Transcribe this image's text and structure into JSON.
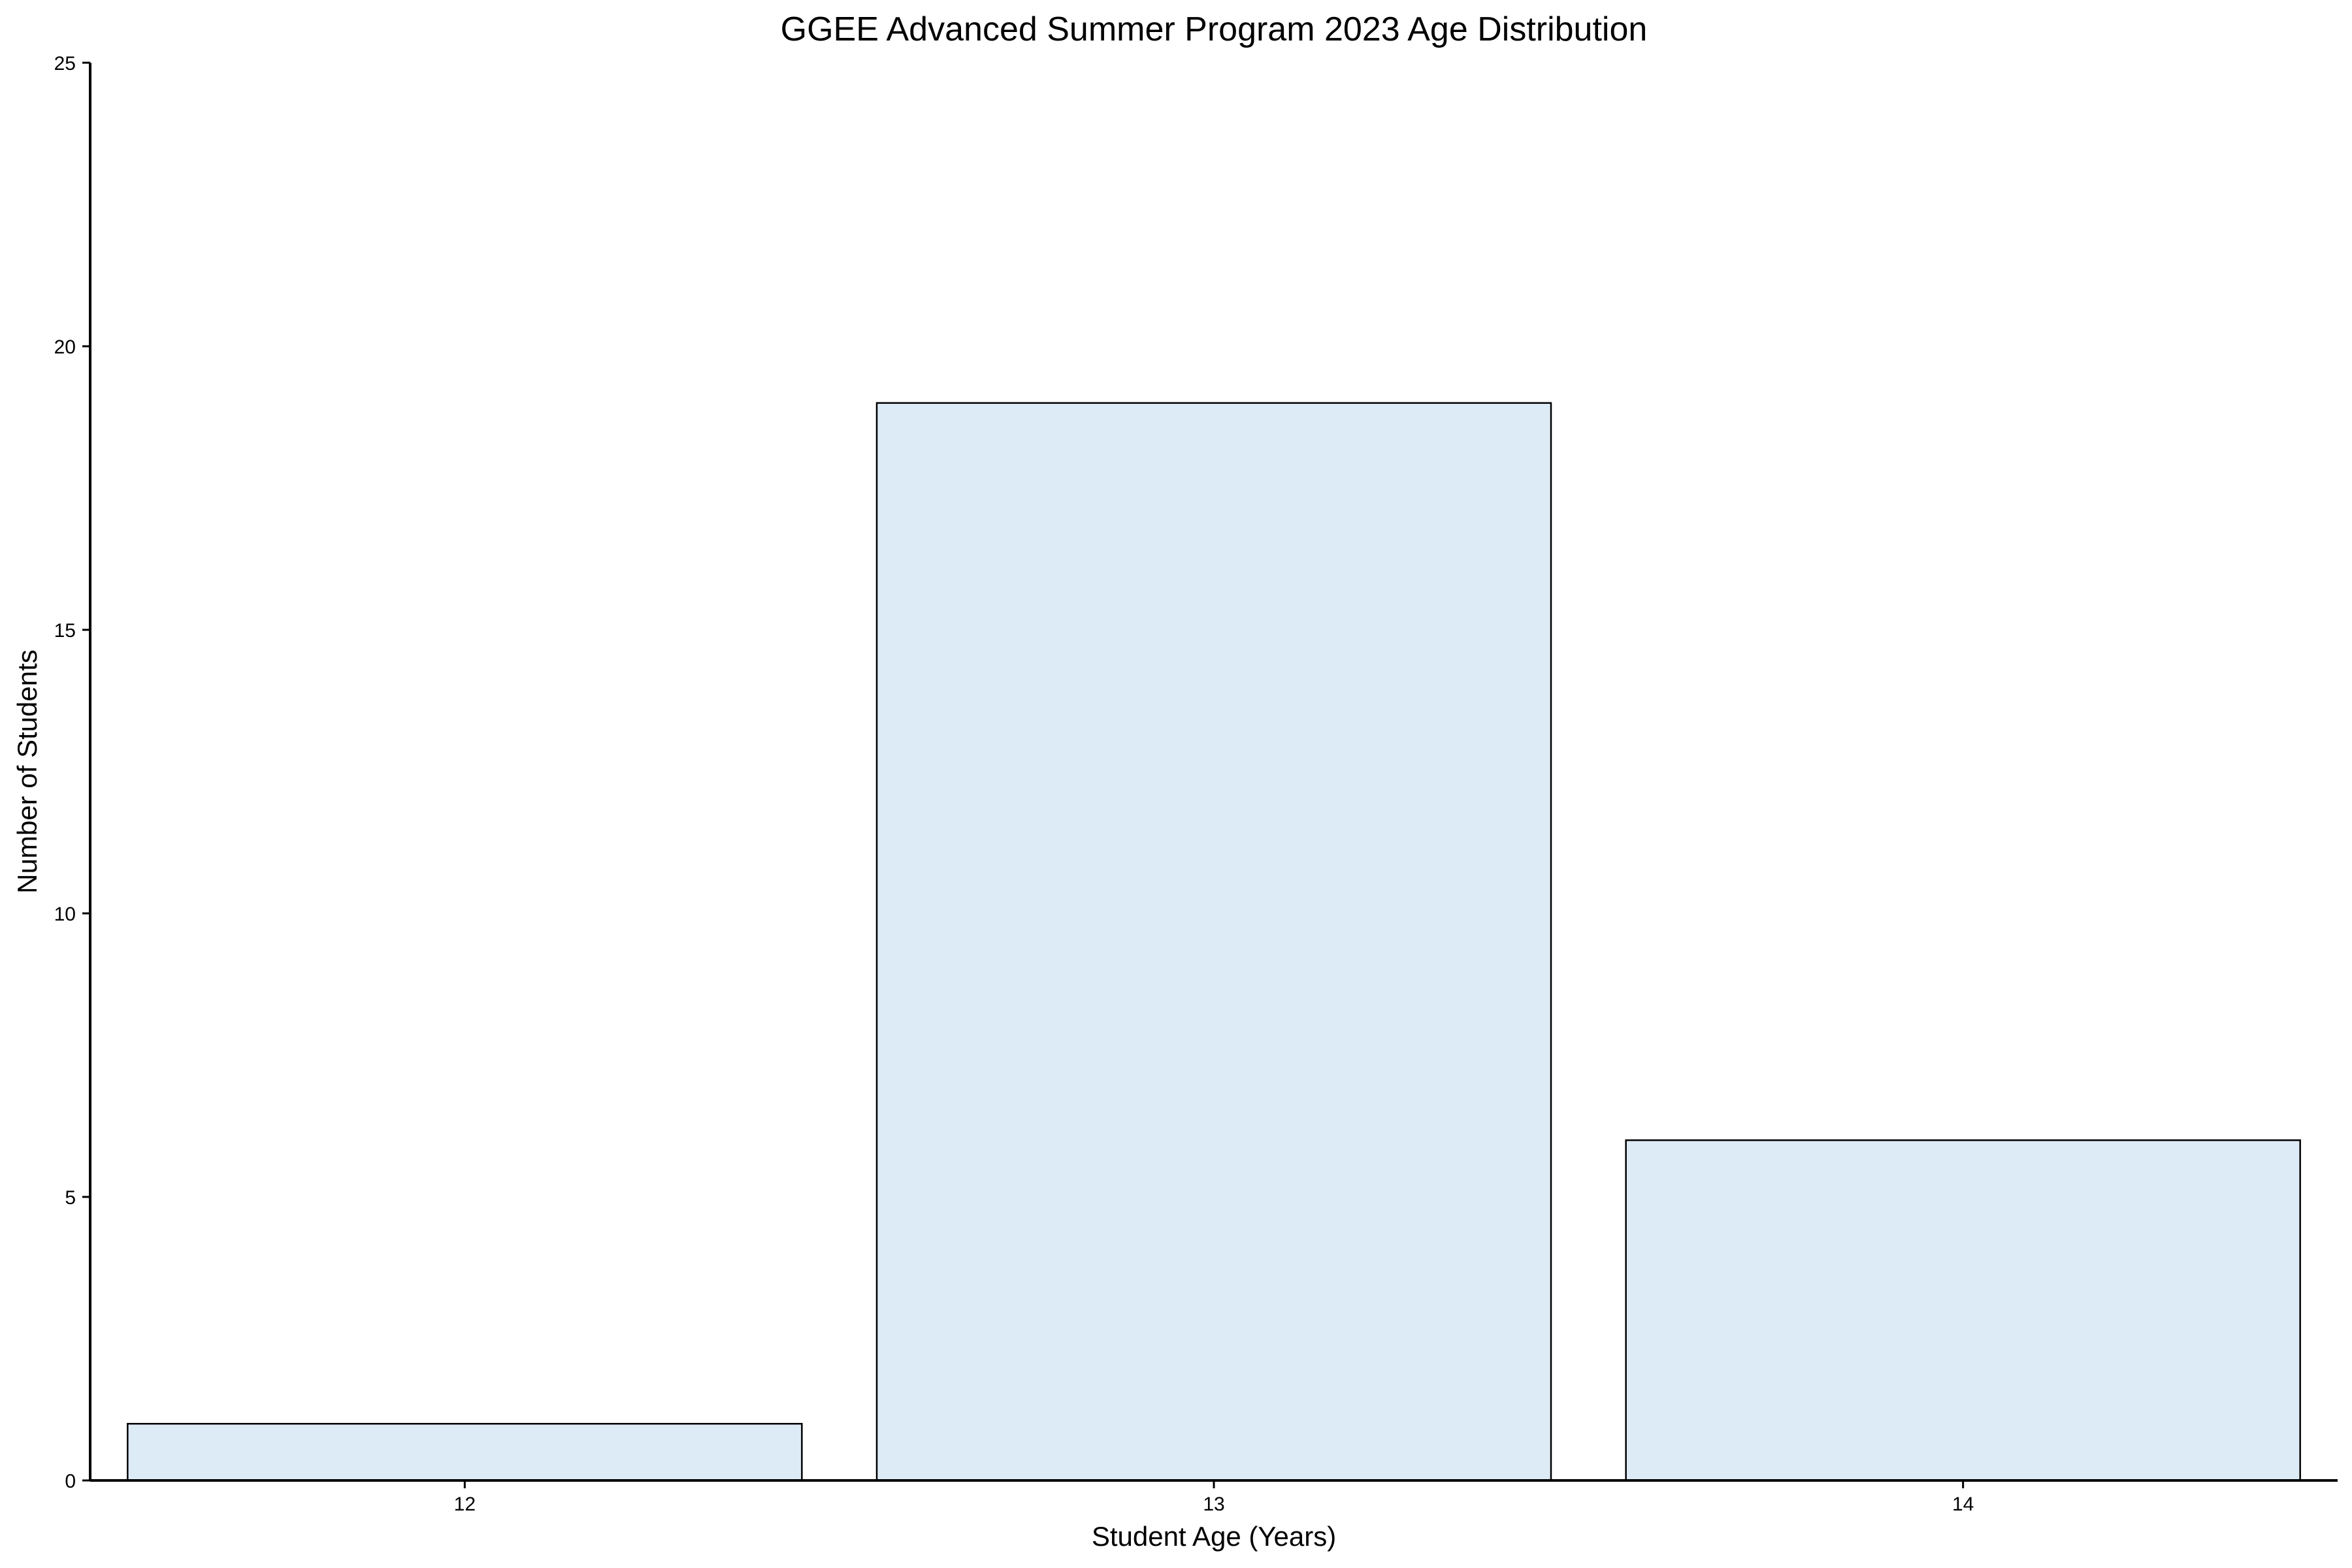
{
  "chart_data": {
    "type": "bar",
    "title": "GGEE Advanced Summer Program 2023 Age Distribution",
    "xlabel": "Student Age (Years)",
    "ylabel": "Number of Students",
    "categories": [
      "12",
      "13",
      "14"
    ],
    "values": [
      1,
      19,
      6
    ],
    "ylim": [
      0,
      25
    ],
    "yticks": [
      0,
      5,
      10,
      15,
      20,
      25
    ],
    "grid": false,
    "bar_color": "#ddebf7",
    "bar_edge_color": "#000000"
  }
}
